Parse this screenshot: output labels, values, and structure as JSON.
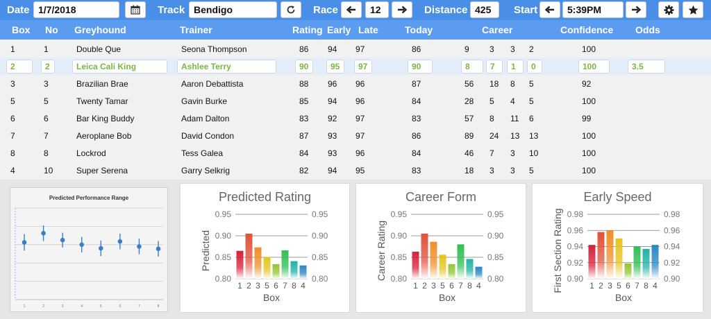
{
  "toolbar": {
    "date_label": "Date",
    "date_value": "1/7/2018",
    "track_label": "Track",
    "track_value": "Bendigo",
    "race_label": "Race",
    "race_value": "12",
    "distance_label": "Distance",
    "distance_value": "425",
    "start_label": "Start",
    "start_value": "5:39PM"
  },
  "table": {
    "columns": [
      "Box",
      "No",
      "Greyhound",
      "Trainer",
      "Rating",
      "Early",
      "Late",
      "Today",
      "Career",
      "Confidence",
      "Odds"
    ],
    "selected_index": 1,
    "rows": [
      {
        "box": "1",
        "no": "1",
        "dog": "Double Que",
        "trainer": "Seona Thompson",
        "rating": "86",
        "early": "94",
        "late": "97",
        "today": "86",
        "c1": "9",
        "c2": "3",
        "c3": "3",
        "c4": "2",
        "conf": "100",
        "odds": ""
      },
      {
        "box": "2",
        "no": "2",
        "dog": "Leica Cali King",
        "trainer": "Ashlee Terry",
        "rating": "90",
        "early": "95",
        "late": "97",
        "today": "90",
        "c1": "8",
        "c2": "7",
        "c3": "1",
        "c4": "0",
        "conf": "100",
        "odds": "3.5"
      },
      {
        "box": "3",
        "no": "3",
        "dog": "Brazilian Brae",
        "trainer": "Aaron Debattista",
        "rating": "88",
        "early": "96",
        "late": "96",
        "today": "87",
        "c1": "56",
        "c2": "18",
        "c3": "8",
        "c4": "5",
        "conf": "92",
        "odds": ""
      },
      {
        "box": "5",
        "no": "5",
        "dog": "Twenty Tamar",
        "trainer": "Gavin Burke",
        "rating": "85",
        "early": "94",
        "late": "96",
        "today": "84",
        "c1": "28",
        "c2": "5",
        "c3": "4",
        "c4": "5",
        "conf": "100",
        "odds": ""
      },
      {
        "box": "6",
        "no": "6",
        "dog": "Bar King Buddy",
        "trainer": "Adam Dalton",
        "rating": "83",
        "early": "92",
        "late": "97",
        "today": "83",
        "c1": "57",
        "c2": "8",
        "c3": "11",
        "c4": "6",
        "conf": "99",
        "odds": ""
      },
      {
        "box": "7",
        "no": "7",
        "dog": "Aeroplane Bob",
        "trainer": "David Condon",
        "rating": "87",
        "early": "93",
        "late": "97",
        "today": "86",
        "c1": "89",
        "c2": "24",
        "c3": "13",
        "c4": "13",
        "conf": "100",
        "odds": ""
      },
      {
        "box": "8",
        "no": "8",
        "dog": "Lockrod",
        "trainer": "Tess Galea",
        "rating": "84",
        "early": "93",
        "late": "96",
        "today": "84",
        "c1": "46",
        "c2": "7",
        "c3": "3",
        "c4": "10",
        "conf": "100",
        "odds": ""
      },
      {
        "box": "4",
        "no": "10",
        "dog": "Super Serena",
        "trainer": "Garry Selkrig",
        "rating": "82",
        "early": "94",
        "late": "95",
        "today": "83",
        "c1": "18",
        "c2": "3",
        "c3": "3",
        "c4": "5",
        "conf": "100",
        "odds": ""
      }
    ]
  },
  "colors": {
    "header_blue": "#5b9cf0",
    "toolbar_blue": "#4a8fe7",
    "selected_green": "#78b943",
    "bar_gradient": [
      "#d6203a",
      "#e0513b",
      "#ef8f2a",
      "#e6c41e",
      "#93c534",
      "#2fbf53",
      "#1fb3a8",
      "#2a86c3"
    ]
  },
  "icons": [
    "calendar-icon",
    "refresh-icon",
    "arrow-left-icon",
    "arrow-right-icon",
    "gear-icon",
    "star-icon"
  ],
  "chart_data": [
    {
      "type": "scatter",
      "title": "Predicted Performance Range",
      "x": [
        "1",
        "2",
        "3",
        "4",
        "5",
        "6",
        "7",
        "8"
      ],
      "values": [
        0.885,
        0.905,
        0.89,
        0.88,
        0.872,
        0.887,
        0.876,
        0.871
      ],
      "ranges": [
        [
          0.867,
          0.903
        ],
        [
          0.888,
          0.922
        ],
        [
          0.874,
          0.906
        ],
        [
          0.863,
          0.897
        ],
        [
          0.855,
          0.889
        ],
        [
          0.87,
          0.904
        ],
        [
          0.859,
          0.893
        ],
        [
          0.854,
          0.888
        ]
      ],
      "ylim": [
        0.76,
        0.96
      ],
      "grid": true
    },
    {
      "type": "bar",
      "title": "Predicted Rating",
      "xlabel": "Box",
      "ylabel": "Predicted",
      "categories": [
        "1",
        "2",
        "3",
        "5",
        "6",
        "7",
        "8",
        "4"
      ],
      "values": [
        0.865,
        0.905,
        0.873,
        0.851,
        0.834,
        0.866,
        0.841,
        0.831
      ],
      "ylim": [
        0.8,
        0.95
      ],
      "yticks": [
        "0.95",
        "0.90",
        "0.85",
        "0.80"
      ]
    },
    {
      "type": "bar",
      "title": "Career Form",
      "xlabel": "Box",
      "ylabel": "Career Rating",
      "categories": [
        "1",
        "2",
        "3",
        "5",
        "6",
        "7",
        "8",
        "4"
      ],
      "values": [
        0.863,
        0.905,
        0.886,
        0.856,
        0.834,
        0.88,
        0.846,
        0.828
      ],
      "ylim": [
        0.8,
        0.95
      ],
      "yticks": [
        "0.95",
        "0.90",
        "0.85",
        "0.80"
      ]
    },
    {
      "type": "bar",
      "title": "Early Speed",
      "xlabel": "Box",
      "ylabel": "First Section Rating",
      "categories": [
        "1",
        "2",
        "3",
        "5",
        "6",
        "7",
        "8",
        "4"
      ],
      "values": [
        0.942,
        0.958,
        0.96,
        0.95,
        0.919,
        0.94,
        0.937,
        0.942
      ],
      "ylim": [
        0.9,
        0.98
      ],
      "yticks": [
        "0.98",
        "0.96",
        "0.94",
        "0.92",
        "0.90"
      ]
    }
  ]
}
